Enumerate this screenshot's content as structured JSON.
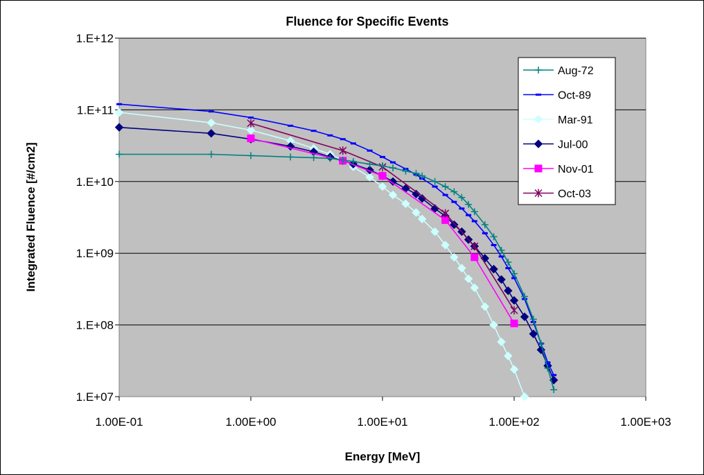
{
  "chart_data": {
    "type": "line",
    "title": "Fluence for Specific Events",
    "xlabel": "Energy [MeV]",
    "ylabel": "Integrated Fluence [#/cm2]",
    "x_scale": "log",
    "y_scale": "log",
    "xlim": [
      0.1,
      1000
    ],
    "ylim": [
      10000000,
      1000000000000
    ],
    "x_ticks": [
      0.1,
      1,
      10,
      100,
      1000
    ],
    "x_tick_labels": [
      "1.00E-01",
      "1.00E+00",
      "1.00E+01",
      "1.00E+02",
      "1.00E+03"
    ],
    "y_ticks": [
      10000000,
      100000000,
      1000000000,
      10000000000,
      100000000000,
      1000000000000
    ],
    "y_tick_labels": [
      "1.E+07",
      "1.E+08",
      "1.E+09",
      "1.E+10",
      "1.E+11",
      "1.E+12"
    ],
    "grid": "horizontal major gridlines",
    "plot_background": "#c0c0c0",
    "legend_position": "top-right",
    "series": [
      {
        "name": "Aug-72",
        "color": "#008080",
        "marker": "plus",
        "x": [
          0.1,
          0.5,
          1,
          2,
          3,
          4,
          5,
          6,
          8,
          10,
          12,
          15,
          18,
          20,
          25,
          30,
          35,
          40,
          45,
          50,
          60,
          70,
          80,
          90,
          100,
          120,
          140,
          160,
          180,
          200
        ],
        "y": [
          24000000000,
          24000000000,
          23000000000,
          22000000000,
          21500000000,
          21000000000,
          20000000000,
          19000000000,
          17500000000,
          16500000000,
          15500000000,
          14000000000,
          13000000000,
          12000000000,
          10000000000,
          8500000000,
          7200000000,
          6000000000,
          4800000000,
          3800000000,
          2500000000,
          1700000000,
          1100000000,
          750000000,
          520000000,
          250000000,
          120000000,
          55000000,
          25000000,
          12500000
        ]
      },
      {
        "name": "Oct-89",
        "color": "#0000ff",
        "marker": "dash",
        "x": [
          0.1,
          0.5,
          1,
          2,
          3,
          4,
          5,
          6,
          8,
          10,
          12,
          15,
          18,
          20,
          25,
          30,
          35,
          40,
          45,
          50,
          60,
          70,
          80,
          90,
          100,
          120,
          140,
          160,
          180,
          200
        ],
        "y": [
          120000000000,
          95000000000,
          78000000000,
          60000000000,
          51000000000,
          44000000000,
          39000000000,
          34000000000,
          27000000000,
          22000000000,
          18500000000,
          15000000000,
          12500000000,
          11000000000,
          8500000000,
          6500000000,
          5200000000,
          4200000000,
          3400000000,
          2800000000,
          1900000000,
          1300000000,
          900000000,
          620000000,
          450000000,
          230000000,
          110000000,
          55000000,
          30000000,
          20000000
        ]
      },
      {
        "name": "Mar-91",
        "color": "#ccffff",
        "marker": "diamond",
        "x": [
          0.1,
          0.5,
          1,
          2,
          3,
          4,
          5,
          6,
          8,
          10,
          12,
          15,
          18,
          20,
          25,
          30,
          35,
          40,
          45,
          50,
          60,
          70,
          80,
          90,
          100,
          120
        ],
        "y": [
          92000000000,
          66000000000,
          52000000000,
          37000000000,
          29000000000,
          24000000000,
          20000000000,
          16000000000,
          11500000000,
          8500000000,
          6500000000,
          4900000000,
          3700000000,
          3000000000,
          2000000000,
          1300000000,
          880000000,
          620000000,
          440000000,
          330000000,
          180000000,
          100000000,
          58000000,
          37000000,
          24000000,
          10000000
        ]
      },
      {
        "name": "Jul-00",
        "color": "#000080",
        "marker": "diamond",
        "x": [
          0.1,
          0.5,
          1,
          2,
          3,
          4,
          5,
          6,
          8,
          10,
          12,
          15,
          18,
          20,
          25,
          30,
          35,
          40,
          45,
          50,
          60,
          70,
          80,
          90,
          100,
          120,
          140,
          160,
          180,
          200
        ],
        "y": [
          57000000000,
          47000000000,
          39000000000,
          31000000000,
          26000000000,
          22000000000,
          19500000000,
          17500000000,
          14500000000,
          12000000000,
          10000000000,
          8000000000,
          6700000000,
          5800000000,
          4200000000,
          3300000000,
          2500000000,
          2000000000,
          1550000000,
          1250000000,
          850000000,
          600000000,
          430000000,
          300000000,
          220000000,
          130000000,
          75000000,
          45000000,
          27000000,
          17000000
        ]
      },
      {
        "name": "Nov-01",
        "color": "#ff00ff",
        "marker": "square",
        "x": [
          1,
          5,
          10,
          30,
          50,
          100
        ],
        "y": [
          40000000000,
          19500000000,
          12000000000,
          2900000000,
          880000000,
          105000000
        ]
      },
      {
        "name": "Oct-03",
        "color": "#800060",
        "marker": "star",
        "x": [
          1,
          5,
          10,
          30,
          50,
          100
        ],
        "y": [
          65000000000,
          27000000000,
          16000000000,
          3600000000,
          1250000000,
          160000000
        ]
      }
    ]
  }
}
